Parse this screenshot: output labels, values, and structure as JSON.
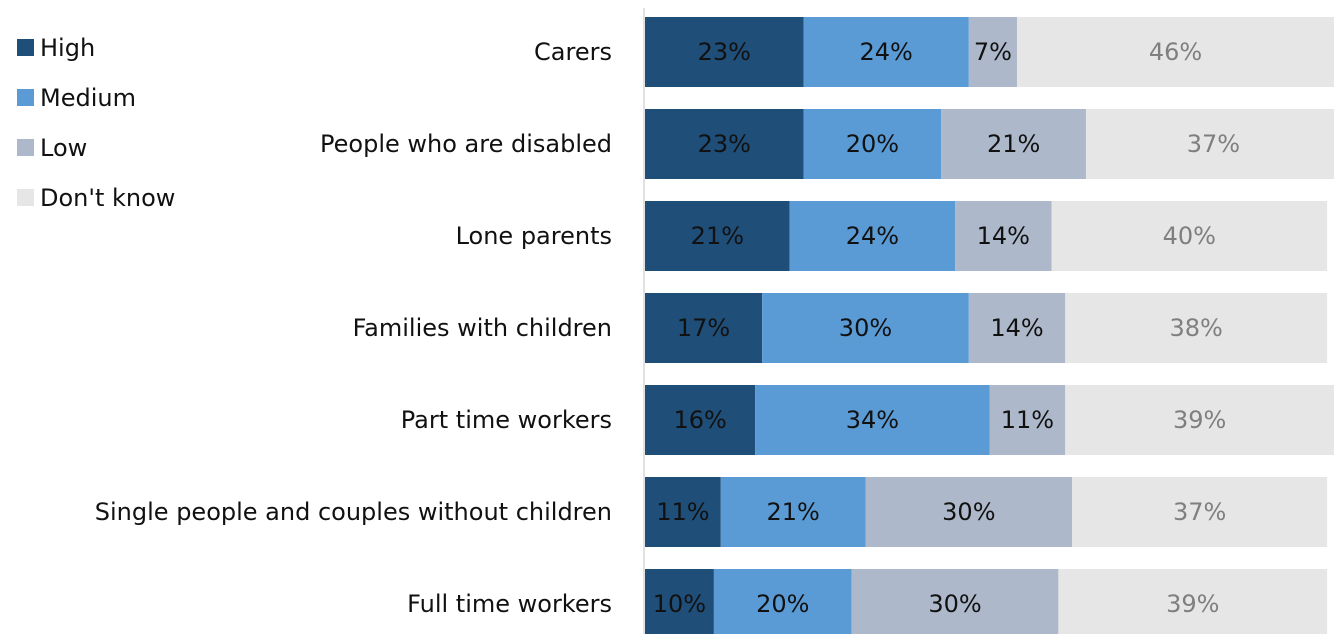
{
  "chart_data": {
    "type": "bar",
    "orientation": "horizontal",
    "stacked": true,
    "title": "",
    "xlabel": "",
    "ylabel": "",
    "xlim": [
      0,
      100
    ],
    "grid": false,
    "legend_position": "top-left",
    "categories": [
      "Carers",
      "People who are disabled",
      "Lone parents",
      "Families with children",
      "Part time workers",
      "Single people and couples without children",
      "Full time workers"
    ],
    "series": [
      {
        "name": "High",
        "color": "#1f4e79",
        "label_color": "#111111",
        "values": [
          23,
          23,
          21,
          17,
          16,
          11,
          10
        ],
        "labels": [
          "23%",
          "23%",
          "21%",
          "17%",
          "16%",
          "11%",
          "10%"
        ]
      },
      {
        "name": "Medium",
        "color": "#5b9bd5",
        "label_color": "#111111",
        "values": [
          24,
          20,
          24,
          30,
          34,
          21,
          20
        ],
        "labels": [
          "24%",
          "20%",
          "24%",
          "30%",
          "34%",
          "21%",
          "20%"
        ]
      },
      {
        "name": "Low",
        "color": "#adb9ca",
        "label_color": "#111111",
        "values": [
          7,
          21,
          14,
          14,
          11,
          30,
          30
        ],
        "labels": [
          "7%",
          "21%",
          "14%",
          "14%",
          "11%",
          "30%",
          "30%"
        ]
      },
      {
        "name": "Don't know",
        "color": "#e7e6e6",
        "label_color": "#7f7f7f",
        "values": [
          46,
          37,
          40,
          38,
          39,
          37,
          39
        ],
        "labels": [
          "46%",
          "37%",
          "40%",
          "38%",
          "39%",
          "37%",
          "39%"
        ]
      }
    ]
  }
}
